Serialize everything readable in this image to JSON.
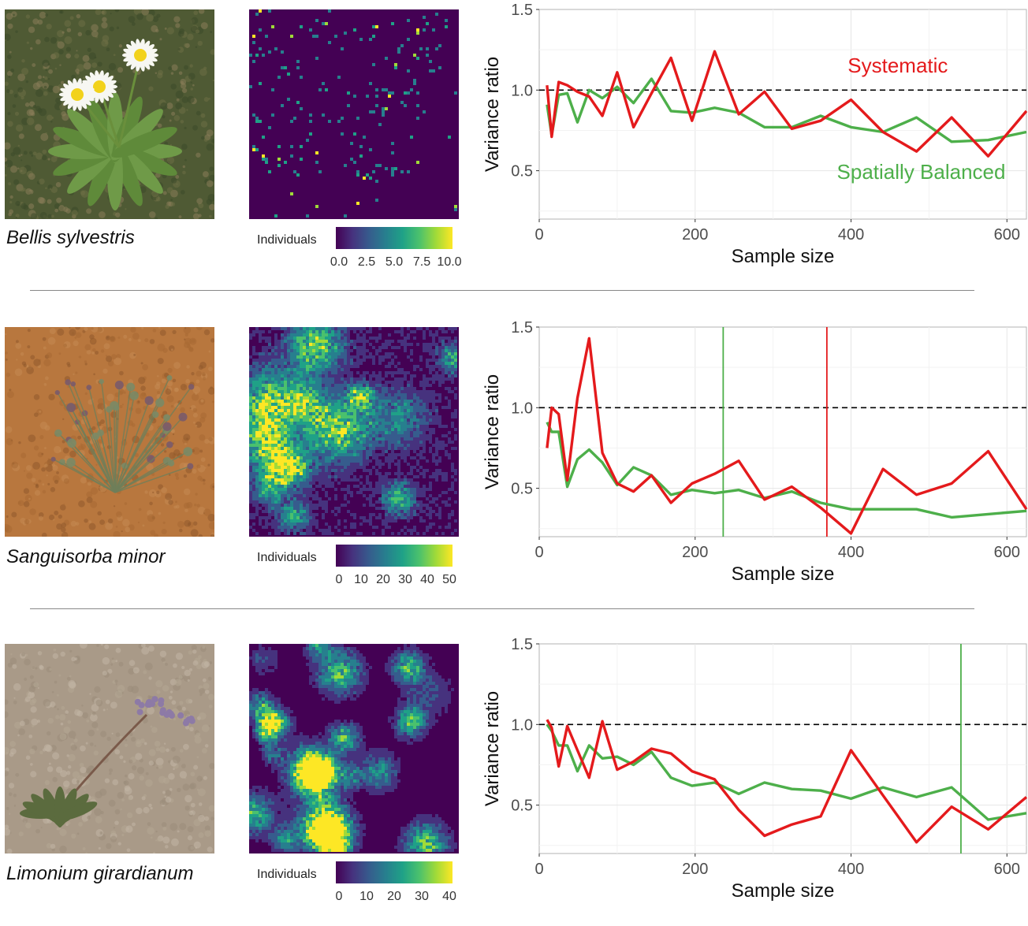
{
  "panels": [
    {
      "species": "Bellis sylvestris",
      "legend": {
        "title": "Individuals",
        "ticks": [
          "0.0",
          "2.5",
          "5.0",
          "7.5",
          "10.0"
        ],
        "max": 10
      },
      "heatmap_seed": 11,
      "photo": {
        "palette": [
          "#4f5a34",
          "#6d6f45",
          "#8a7d5a",
          "#3c4a2a"
        ],
        "subject": "daisy"
      }
    },
    {
      "species": "Sanguisorba minor",
      "legend": {
        "title": "Individuals",
        "ticks": [
          "0",
          "10",
          "20",
          "30",
          "40",
          "50"
        ],
        "max": 50
      },
      "heatmap_seed": 23,
      "photo": {
        "palette": [
          "#b8773e",
          "#a86a33",
          "#c48a52",
          "#8f5a2c"
        ],
        "subject": "herb"
      }
    },
    {
      "species": "Limonium girardianum",
      "legend": {
        "title": "Individuals",
        "ticks": [
          "0",
          "10",
          "20",
          "30",
          "40"
        ],
        "max": 40
      },
      "heatmap_seed": 37,
      "photo": {
        "palette": [
          "#a99a88",
          "#b5a794",
          "#9a8c7a",
          "#c2b6a6"
        ],
        "subject": "limonium"
      }
    }
  ],
  "chart_data": [
    {
      "type": "line",
      "xlabel": "Sample size",
      "ylabel": "Variance ratio",
      "xlim": [
        0,
        625
      ],
      "ylim": [
        0.2,
        1.5
      ],
      "xticks": [
        0,
        200,
        400,
        600
      ],
      "yticks": [
        0.5,
        1.0,
        1.5
      ],
      "ytick_labels": [
        "0.5",
        "1.0",
        "1.5"
      ],
      "reference_line": 1.0,
      "grid": true,
      "annotations": [
        {
          "text": "Systematic",
          "color": "#e41a1c",
          "x": 460,
          "y": 1.11
        },
        {
          "text": "Spatially Balanced",
          "color": "#4daf4a",
          "x": 490,
          "y": 0.45
        }
      ],
      "vlines": [],
      "series": [
        {
          "color": "#e41a1c",
          "x": [
            10,
            16,
            25,
            36,
            49,
            64,
            81,
            100,
            121,
            144,
            169,
            196,
            225,
            256,
            289,
            324,
            361,
            400,
            441,
            484,
            529,
            576,
            625
          ],
          "y": [
            1.03,
            0.71,
            1.05,
            1.03,
            0.99,
            0.96,
            0.84,
            1.11,
            0.77,
            0.98,
            1.2,
            0.81,
            1.24,
            0.85,
            0.99,
            0.76,
            0.81,
            0.94,
            0.74,
            0.62,
            0.83,
            0.59,
            0.87
          ]
        },
        {
          "color": "#4daf4a",
          "x": [
            10,
            16,
            25,
            36,
            49,
            64,
            81,
            100,
            121,
            144,
            169,
            196,
            225,
            256,
            289,
            324,
            361,
            400,
            441,
            484,
            529,
            576,
            625
          ],
          "y": [
            0.91,
            0.72,
            0.97,
            0.98,
            0.8,
            1.0,
            0.95,
            1.02,
            0.92,
            1.07,
            0.87,
            0.86,
            0.89,
            0.86,
            0.77,
            0.77,
            0.84,
            0.77,
            0.74,
            0.83,
            0.68,
            0.69,
            0.74
          ]
        }
      ]
    },
    {
      "type": "line",
      "xlabel": "Sample size",
      "ylabel": "Variance ratio",
      "xlim": [
        0,
        625
      ],
      "ylim": [
        0.2,
        1.5
      ],
      "xticks": [
        0,
        200,
        400,
        600
      ],
      "yticks": [
        0.5,
        1.0,
        1.5
      ],
      "ytick_labels": [
        "0.5",
        "1.0",
        "1.5"
      ],
      "reference_line": 1.0,
      "grid": true,
      "annotations": [],
      "vlines": [
        {
          "x": 236,
          "color": "#4daf4a"
        },
        {
          "x": 369,
          "color": "#e41a1c"
        }
      ],
      "series": [
        {
          "color": "#e41a1c",
          "x": [
            10,
            16,
            25,
            36,
            49,
            64,
            81,
            100,
            121,
            144,
            169,
            196,
            225,
            256,
            289,
            324,
            361,
            400,
            441,
            484,
            529,
            576,
            625
          ],
          "y": [
            0.75,
            1.0,
            0.96,
            0.55,
            1.06,
            1.43,
            0.72,
            0.53,
            0.48,
            0.58,
            0.41,
            0.53,
            0.59,
            0.67,
            0.43,
            0.51,
            0.38,
            0.22,
            0.62,
            0.46,
            0.53,
            0.73,
            0.37
          ]
        },
        {
          "color": "#4daf4a",
          "x": [
            10,
            16,
            25,
            36,
            49,
            64,
            81,
            100,
            121,
            144,
            169,
            196,
            225,
            256,
            289,
            324,
            361,
            400,
            441,
            484,
            529,
            576,
            625
          ],
          "y": [
            0.91,
            0.85,
            0.85,
            0.51,
            0.68,
            0.74,
            0.66,
            0.52,
            0.63,
            0.58,
            0.46,
            0.49,
            0.47,
            0.49,
            0.44,
            0.48,
            0.41,
            0.37,
            0.37,
            0.37,
            0.32,
            0.34,
            0.36
          ]
        }
      ]
    },
    {
      "type": "line",
      "xlabel": "Sample size",
      "ylabel": "Variance ratio",
      "xlim": [
        0,
        625
      ],
      "ylim": [
        0.2,
        1.5
      ],
      "xticks": [
        0,
        200,
        400,
        600
      ],
      "yticks": [
        0.5,
        1.0,
        1.5
      ],
      "ytick_labels": [
        "0.5",
        "1.0",
        "1.5"
      ],
      "reference_line": 1.0,
      "grid": true,
      "annotations": [],
      "vlines": [
        {
          "x": 541,
          "color": "#4daf4a"
        }
      ],
      "series": [
        {
          "color": "#e41a1c",
          "x": [
            10,
            16,
            25,
            36,
            49,
            64,
            81,
            100,
            121,
            144,
            169,
            196,
            225,
            256,
            289,
            324,
            361,
            400,
            441,
            484,
            529,
            576,
            625
          ],
          "y": [
            1.03,
            0.98,
            0.74,
            0.99,
            0.84,
            0.67,
            1.02,
            0.72,
            0.77,
            0.85,
            0.82,
            0.71,
            0.66,
            0.47,
            0.31,
            0.38,
            0.43,
            0.84,
            0.56,
            0.27,
            0.49,
            0.35,
            0.55
          ]
        },
        {
          "color": "#4daf4a",
          "x": [
            10,
            16,
            25,
            36,
            49,
            64,
            81,
            100,
            121,
            144,
            169,
            196,
            225,
            256,
            289,
            324,
            361,
            400,
            441,
            484,
            529,
            576,
            625
          ],
          "y": [
            1.0,
            0.96,
            0.87,
            0.87,
            0.71,
            0.87,
            0.79,
            0.8,
            0.75,
            0.83,
            0.67,
            0.62,
            0.64,
            0.57,
            0.64,
            0.6,
            0.59,
            0.54,
            0.61,
            0.55,
            0.61,
            0.41,
            0.45
          ]
        }
      ]
    }
  ]
}
